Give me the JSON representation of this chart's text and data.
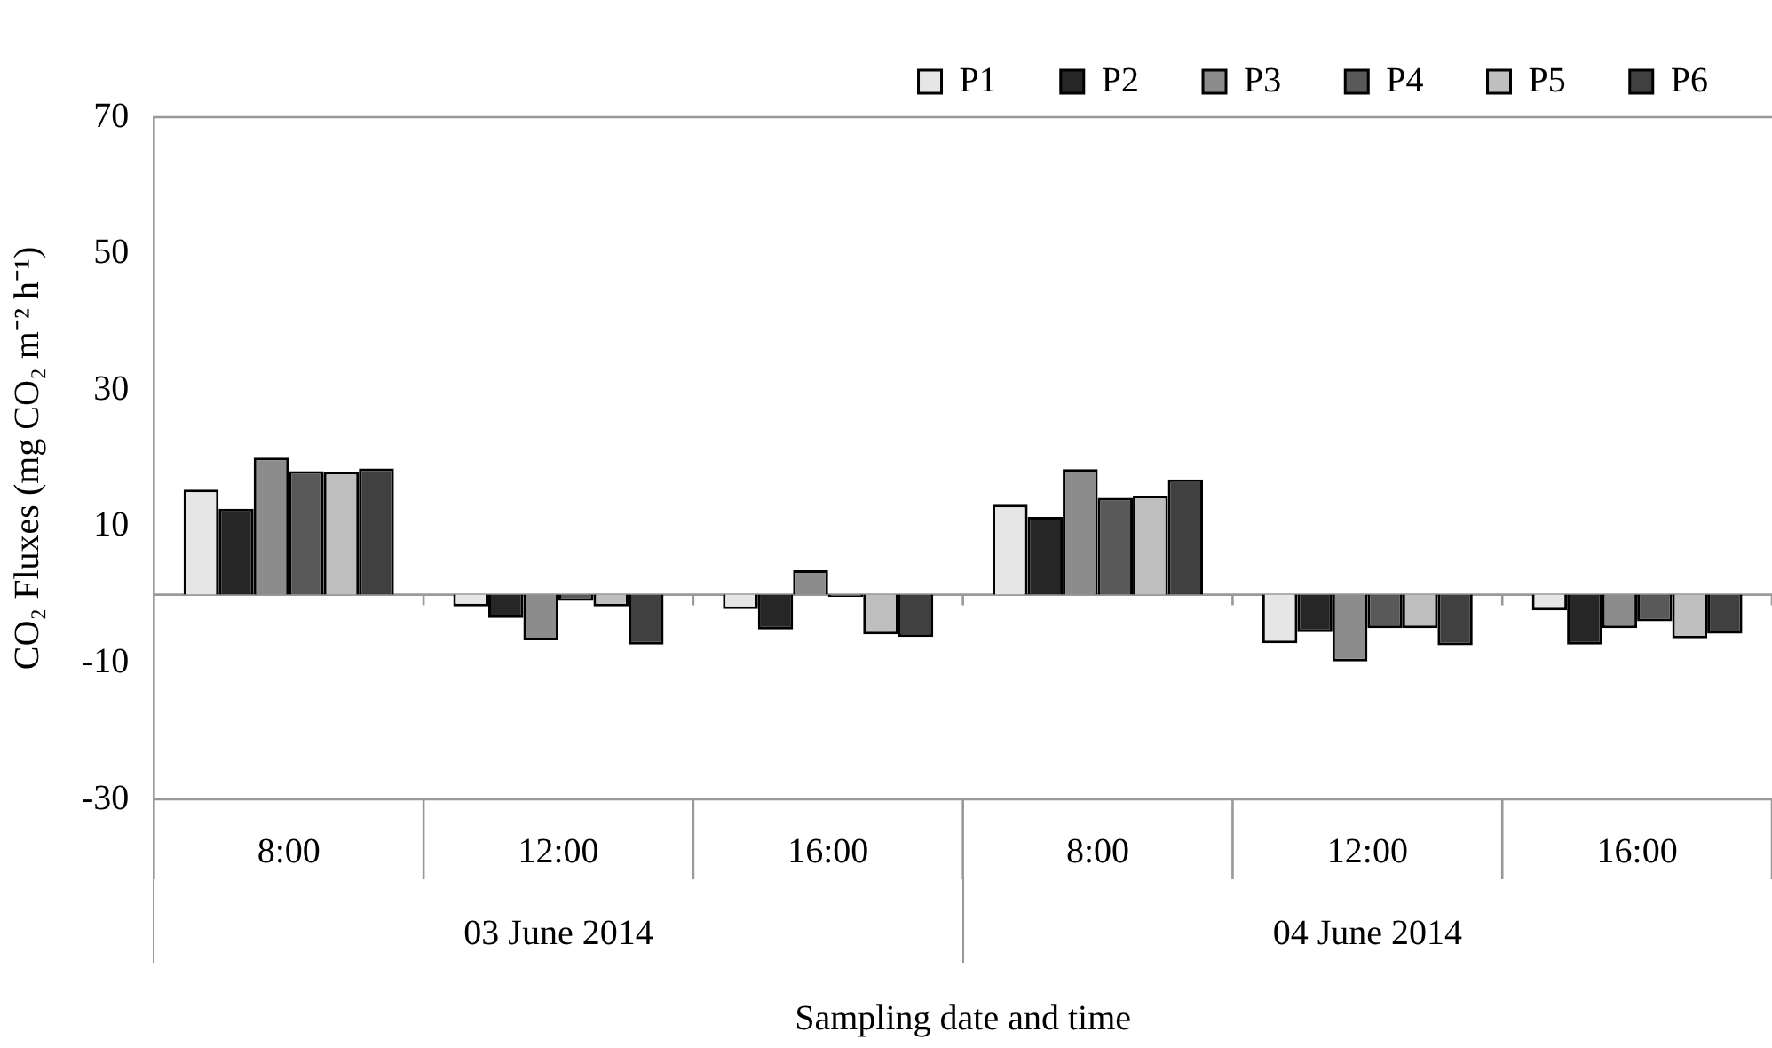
{
  "chart_data": {
    "type": "bar",
    "xlabel": "Sampling date and time",
    "ylabel": "CO₂ Fluxes (mg CO₂ m⁻² h⁻¹)",
    "categories": [
      "8:00",
      "12:00",
      "16:00",
      "8:00",
      "12:00",
      "16:00"
    ],
    "annotations": [
      "03 June 2014",
      "04 June 2014"
    ],
    "series": [
      {
        "name": "P1",
        "color": "#e6e6e6",
        "values": [
          15.4,
          -1.7,
          -2.1,
          13.2,
          -7.1,
          -2.3
        ]
      },
      {
        "name": "P2",
        "color": "#262626",
        "values": [
          12.6,
          -3.4,
          -5.1,
          11.4,
          -5.5,
          -7.3
        ]
      },
      {
        "name": "P3",
        "color": "#8c8c8c",
        "values": [
          20.1,
          -6.7,
          3.6,
          18.4,
          -9.8,
          -4.9
        ]
      },
      {
        "name": "P4",
        "color": "#595959",
        "values": [
          18.1,
          -0.9,
          -0.3,
          14.2,
          -4.9,
          -3.9
        ]
      },
      {
        "name": "P5",
        "color": "#bfbfbf",
        "values": [
          18,
          -1.7,
          -5.8,
          14.5,
          -4.9,
          -6.4
        ]
      },
      {
        "name": "P6",
        "color": "#404040",
        "values": [
          18.5,
          -7.3,
          -6.2,
          16.9,
          -7.4,
          -5.7
        ]
      }
    ],
    "ylim": [
      -30,
      70
    ],
    "yticks": [
      -30,
      -10,
      10,
      30,
      50,
      70
    ],
    "grid": false,
    "legend": "top right"
  }
}
